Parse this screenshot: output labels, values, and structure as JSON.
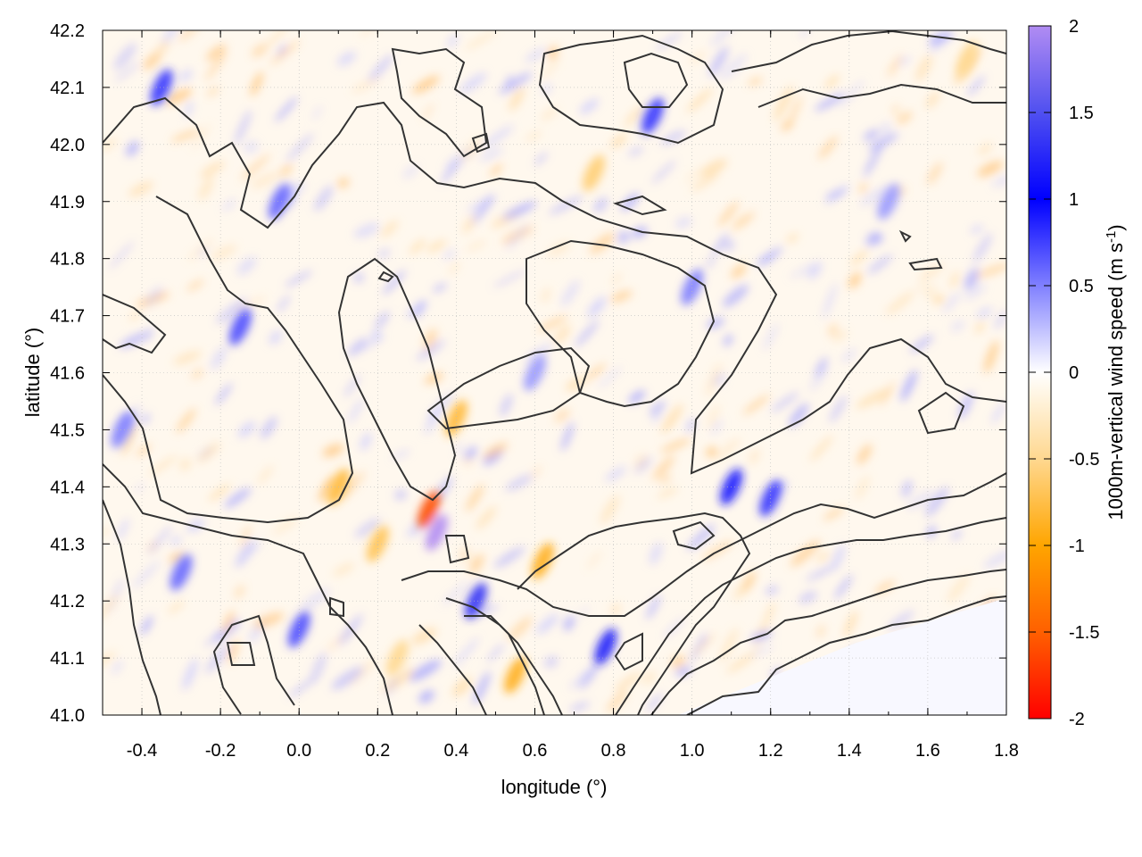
{
  "chart_data": {
    "type": "heatmap",
    "title": "",
    "xlabel": "longitude (°)",
    "ylabel": "latitude (°)",
    "colorbar_label": "1000m-vertical wind speed (m s",
    "colorbar_label_sup": "-1",
    "colorbar_label_end": ")",
    "xlim": [
      -0.5,
      1.8
    ],
    "ylim": [
      41.0,
      42.2
    ],
    "x_ticks": [
      -0.4,
      -0.2,
      0.0,
      0.2,
      0.4,
      0.6,
      0.8,
      1.0,
      1.2,
      1.4,
      1.6,
      1.8
    ],
    "x_tick_labels": [
      "-0.4",
      "-0.2",
      "0.0",
      "0.2",
      "0.4",
      "0.6",
      "0.8",
      "1.0",
      "1.2",
      "1.4",
      "1.6",
      "1.8"
    ],
    "y_ticks": [
      41.0,
      41.1,
      41.2,
      41.3,
      41.4,
      41.5,
      41.6,
      41.7,
      41.8,
      41.9,
      42.0,
      42.1,
      42.2
    ],
    "y_tick_labels": [
      "41.0",
      "41.1",
      "41.2",
      "41.3",
      "41.4",
      "41.5",
      "41.6",
      "41.7",
      "41.8",
      "41.9",
      "42.0",
      "42.1",
      "42.2"
    ],
    "colorbar_range": [
      -2,
      2
    ],
    "colorbar_ticks": [
      2,
      1.5,
      1,
      0.5,
      0,
      -0.5,
      -1,
      -1.5,
      -2
    ],
    "colorbar_tick_labels": [
      "2",
      "1.5",
      "1",
      "0.5",
      "0",
      "-0.5",
      "-1",
      "-1.5",
      "-2"
    ],
    "colormap": [
      {
        "value": 2,
        "color": "#b18cf2"
      },
      {
        "value": 1.5,
        "color": "#5050f0"
      },
      {
        "value": 1,
        "color": "#0000ff"
      },
      {
        "value": 0.5,
        "color": "#8080ff"
      },
      {
        "value": 0,
        "color": "#ffffff"
      },
      {
        "value": -0.5,
        "color": "#ffd890"
      },
      {
        "value": -1,
        "color": "#ffa500"
      },
      {
        "value": -1.5,
        "color": "#ff6000"
      },
      {
        "value": -2,
        "color": "#ff0000"
      }
    ],
    "grid": true,
    "contour_color": "#333333",
    "hotspots": [
      {
        "lon": 0.35,
        "lat": 41.32,
        "value": 2.0
      },
      {
        "lon": 0.33,
        "lat": 41.36,
        "value": -1.6
      },
      {
        "lon": 0.45,
        "lat": 41.2,
        "value": 1.3
      },
      {
        "lon": 0.62,
        "lat": 41.27,
        "value": -0.9
      },
      {
        "lon": 0.78,
        "lat": 41.12,
        "value": 1.2
      },
      {
        "lon": 0.55,
        "lat": 41.07,
        "value": -0.9
      },
      {
        "lon": 0.4,
        "lat": 41.52,
        "value": -0.8
      },
      {
        "lon": 0.1,
        "lat": 41.4,
        "value": -0.8
      },
      {
        "lon": 0.2,
        "lat": 41.3,
        "value": -0.7
      },
      {
        "lon": -0.15,
        "lat": 41.68,
        "value": 0.7
      },
      {
        "lon": -0.35,
        "lat": 42.1,
        "value": 0.8
      },
      {
        "lon": -0.05,
        "lat": 41.9,
        "value": 0.6
      },
      {
        "lon": 0.9,
        "lat": 42.05,
        "value": 0.8
      },
      {
        "lon": 0.75,
        "lat": 41.95,
        "value": -0.6
      },
      {
        "lon": 1.1,
        "lat": 41.4,
        "value": 0.9
      },
      {
        "lon": 1.2,
        "lat": 41.38,
        "value": 0.8
      },
      {
        "lon": -0.3,
        "lat": 41.25,
        "value": 0.6
      },
      {
        "lon": 0.0,
        "lat": 41.15,
        "value": 0.7
      },
      {
        "lon": 0.25,
        "lat": 41.1,
        "value": -0.5
      },
      {
        "lon": 1.0,
        "lat": 41.75,
        "value": 0.5
      },
      {
        "lon": 1.5,
        "lat": 41.9,
        "value": 0.4
      },
      {
        "lon": 1.7,
        "lat": 42.15,
        "value": -0.5
      },
      {
        "lon": 0.6,
        "lat": 41.6,
        "value": 0.4
      },
      {
        "lon": -0.45,
        "lat": 41.5,
        "value": 0.5
      }
    ]
  }
}
